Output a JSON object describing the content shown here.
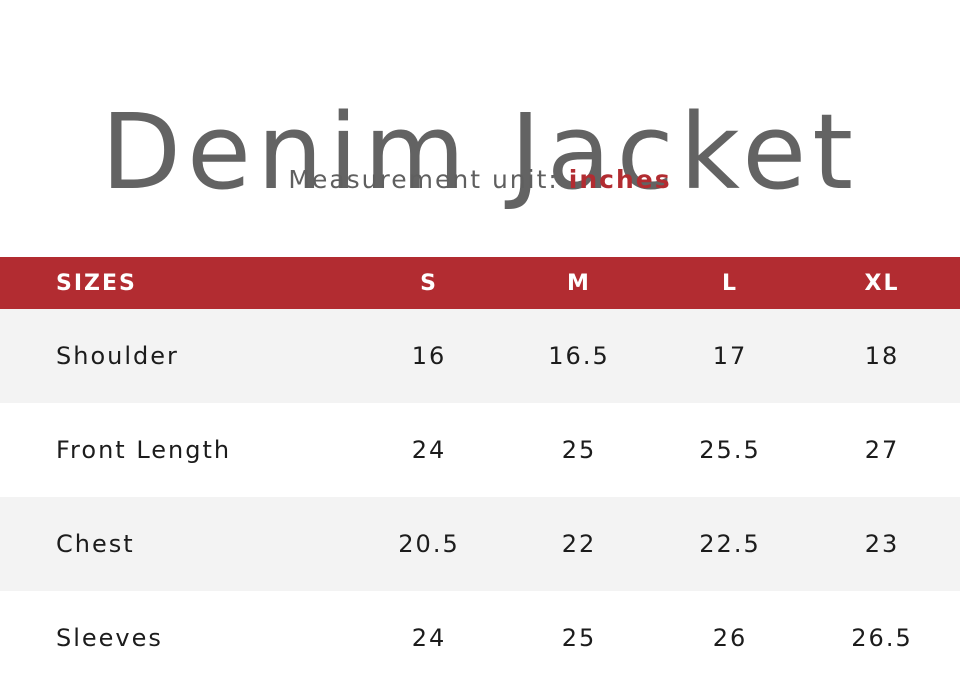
{
  "title": "Denim Jacket",
  "subtitle": {
    "prefix": "Measurement unit:",
    "unit": "inches"
  },
  "colors": {
    "accent": "#b22c31",
    "row_shade": "#f3f3f3",
    "title_text": "#636363"
  },
  "table": {
    "header": {
      "label": "SIZES",
      "sizes": [
        "S",
        "M",
        "L",
        "XL"
      ]
    },
    "rows": [
      {
        "label": "Shoulder",
        "values": [
          "16",
          "16.5",
          "17",
          "18"
        ]
      },
      {
        "label": "Front Length",
        "values": [
          "24",
          "25",
          "25.5",
          "27"
        ]
      },
      {
        "label": "Chest",
        "values": [
          "20.5",
          "22",
          "22.5",
          "23"
        ]
      },
      {
        "label": "Sleeves",
        "values": [
          "24",
          "25",
          "26",
          "26.5"
        ]
      }
    ]
  }
}
